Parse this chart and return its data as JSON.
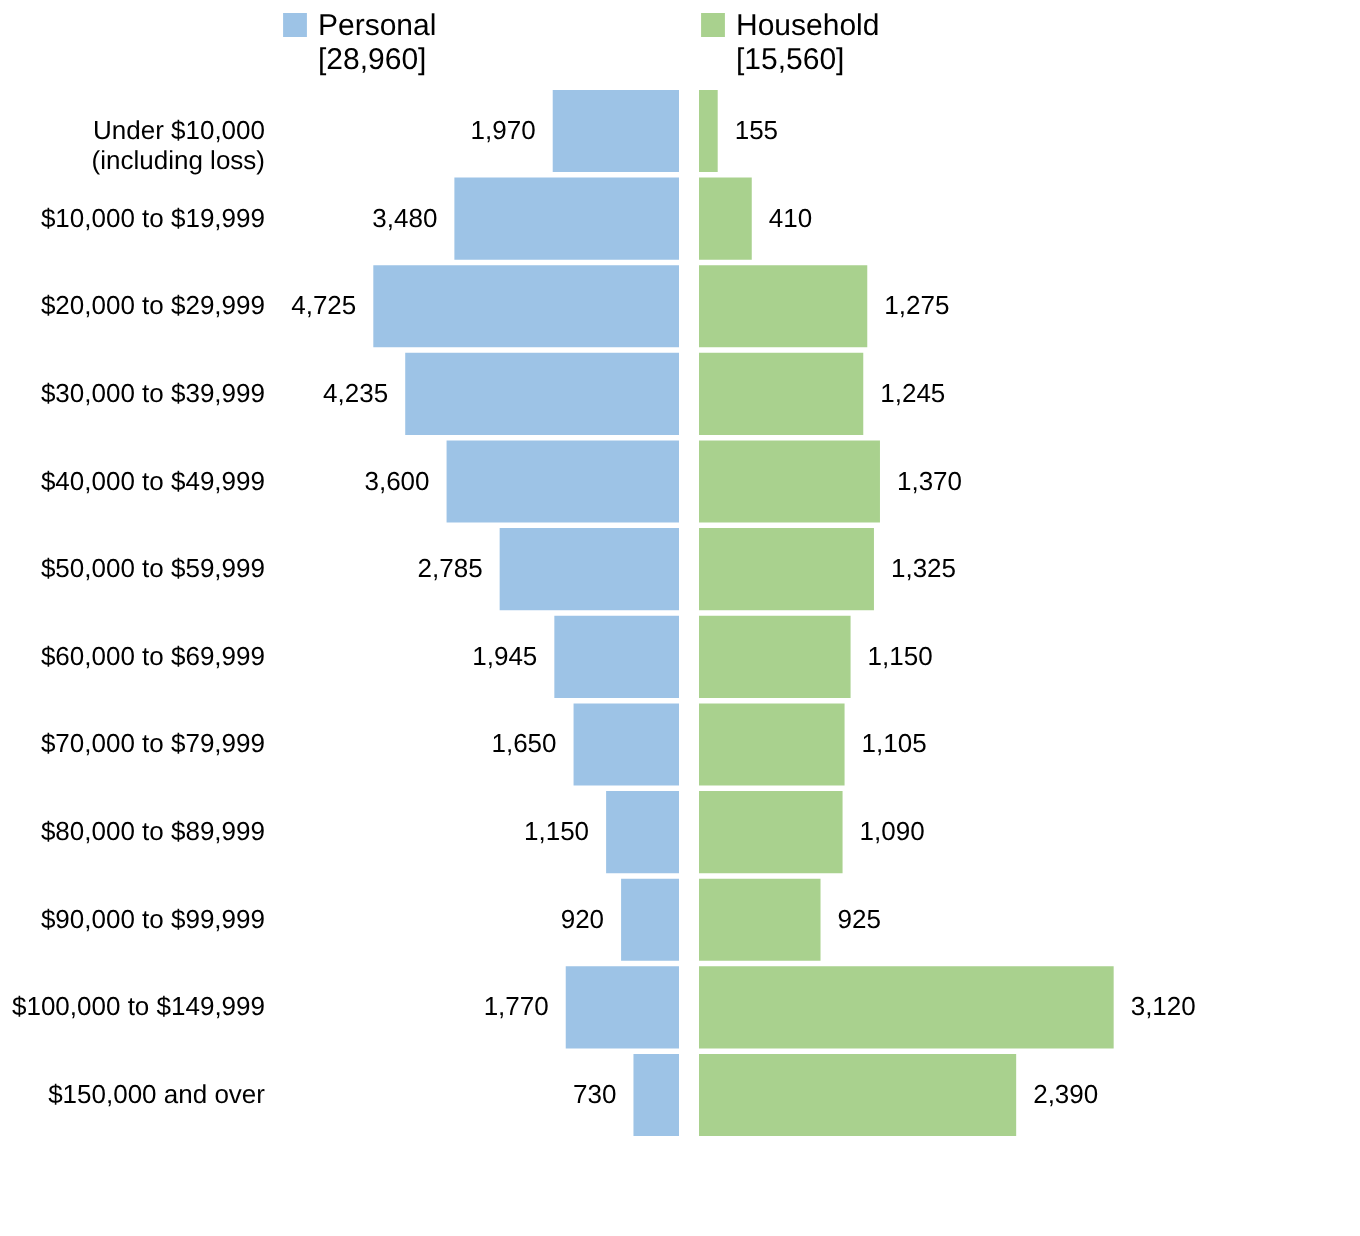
{
  "chart_data": [
    {
      "type": "bar",
      "orientation": "horizontal",
      "categories": [
        "Under $10,000\n(including loss)",
        "$10,000 to $19,999",
        "$20,000 to $29,999",
        "$30,000 to $39,999",
        "$40,000 to $49,999",
        "$50,000 to $59,999",
        "$60,000 to $69,999",
        "$70,000 to $79,999",
        "$80,000 to $89,999",
        "$90,000 to $99,999",
        "$100,000 to $149,999",
        "$150,000 and over"
      ],
      "series": [
        {
          "name": "Personal\n[28,960]",
          "color": "#9dc3e6",
          "values": [
            1970,
            3480,
            4725,
            4235,
            3600,
            2785,
            1945,
            1650,
            1150,
            920,
            1770,
            730
          ],
          "value_labels": [
            "1,970",
            "3,480",
            "4,725",
            "4,235",
            "3,600",
            "2,785",
            "1,945",
            "1,650",
            "1,150",
            "920",
            "1,770",
            "730"
          ]
        }
      ],
      "legend": "top",
      "tick_labels": "y"
    },
    {
      "type": "bar",
      "orientation": "horizontal",
      "categories": [
        null,
        null,
        null,
        null,
        null,
        null,
        null,
        null,
        null,
        null,
        null,
        null
      ],
      "series": [
        {
          "name": "Household\n[15,560]",
          "color": "#a9d18e",
          "values": [
            155,
            410,
            1275,
            1245,
            1370,
            1325,
            1150,
            1105,
            1090,
            925,
            3120,
            2390
          ],
          "value_labels": [
            "155",
            "410",
            "1,275",
            "1,245",
            "1,370",
            "1,325",
            "1,150",
            "1,105",
            "1,090",
            "925",
            "3,120",
            "2,390"
          ]
        }
      ],
      "legend": "top"
    }
  ]
}
